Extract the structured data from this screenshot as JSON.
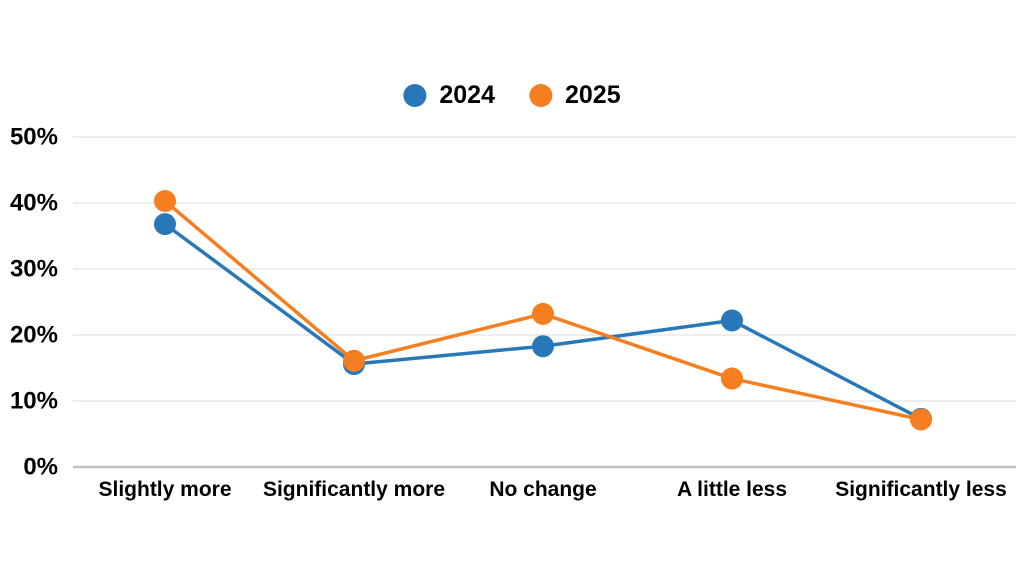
{
  "page": {
    "background": "#ffffff"
  },
  "legend": {
    "position": "top-center",
    "items": [
      {
        "label": "2024",
        "color": "#2878B9"
      },
      {
        "label": "2025",
        "color": "#F57E20"
      }
    ]
  },
  "chart_data": {
    "type": "line",
    "title": "",
    "xlabel": "",
    "ylabel": "",
    "grid": true,
    "legend_position": "top-center",
    "ylim": [
      0,
      50
    ],
    "categories": [
      "Slightly more",
      "Significantly more",
      "No change",
      "A little less",
      "Significantly less"
    ],
    "series": [
      {
        "name": "2024",
        "color": "#2878B9",
        "values": [
          36.8,
          15.6,
          18.3,
          22.2,
          7.3
        ]
      },
      {
        "name": "2025",
        "color": "#F57E20",
        "values": [
          40.3,
          16.1,
          23.2,
          13.4,
          7.2
        ]
      }
    ],
    "yticks": [
      {
        "value": 0,
        "label": "0%"
      },
      {
        "value": 10,
        "label": "10%"
      },
      {
        "value": 20,
        "label": "20%"
      },
      {
        "value": 30,
        "label": "30%"
      },
      {
        "value": 40,
        "label": "40%"
      },
      {
        "value": 50,
        "label": "50%"
      }
    ]
  },
  "colors": {
    "gridline": "#E8E8E8",
    "zero_axis_line": "#C2C2C2",
    "label_text": "#000000"
  }
}
